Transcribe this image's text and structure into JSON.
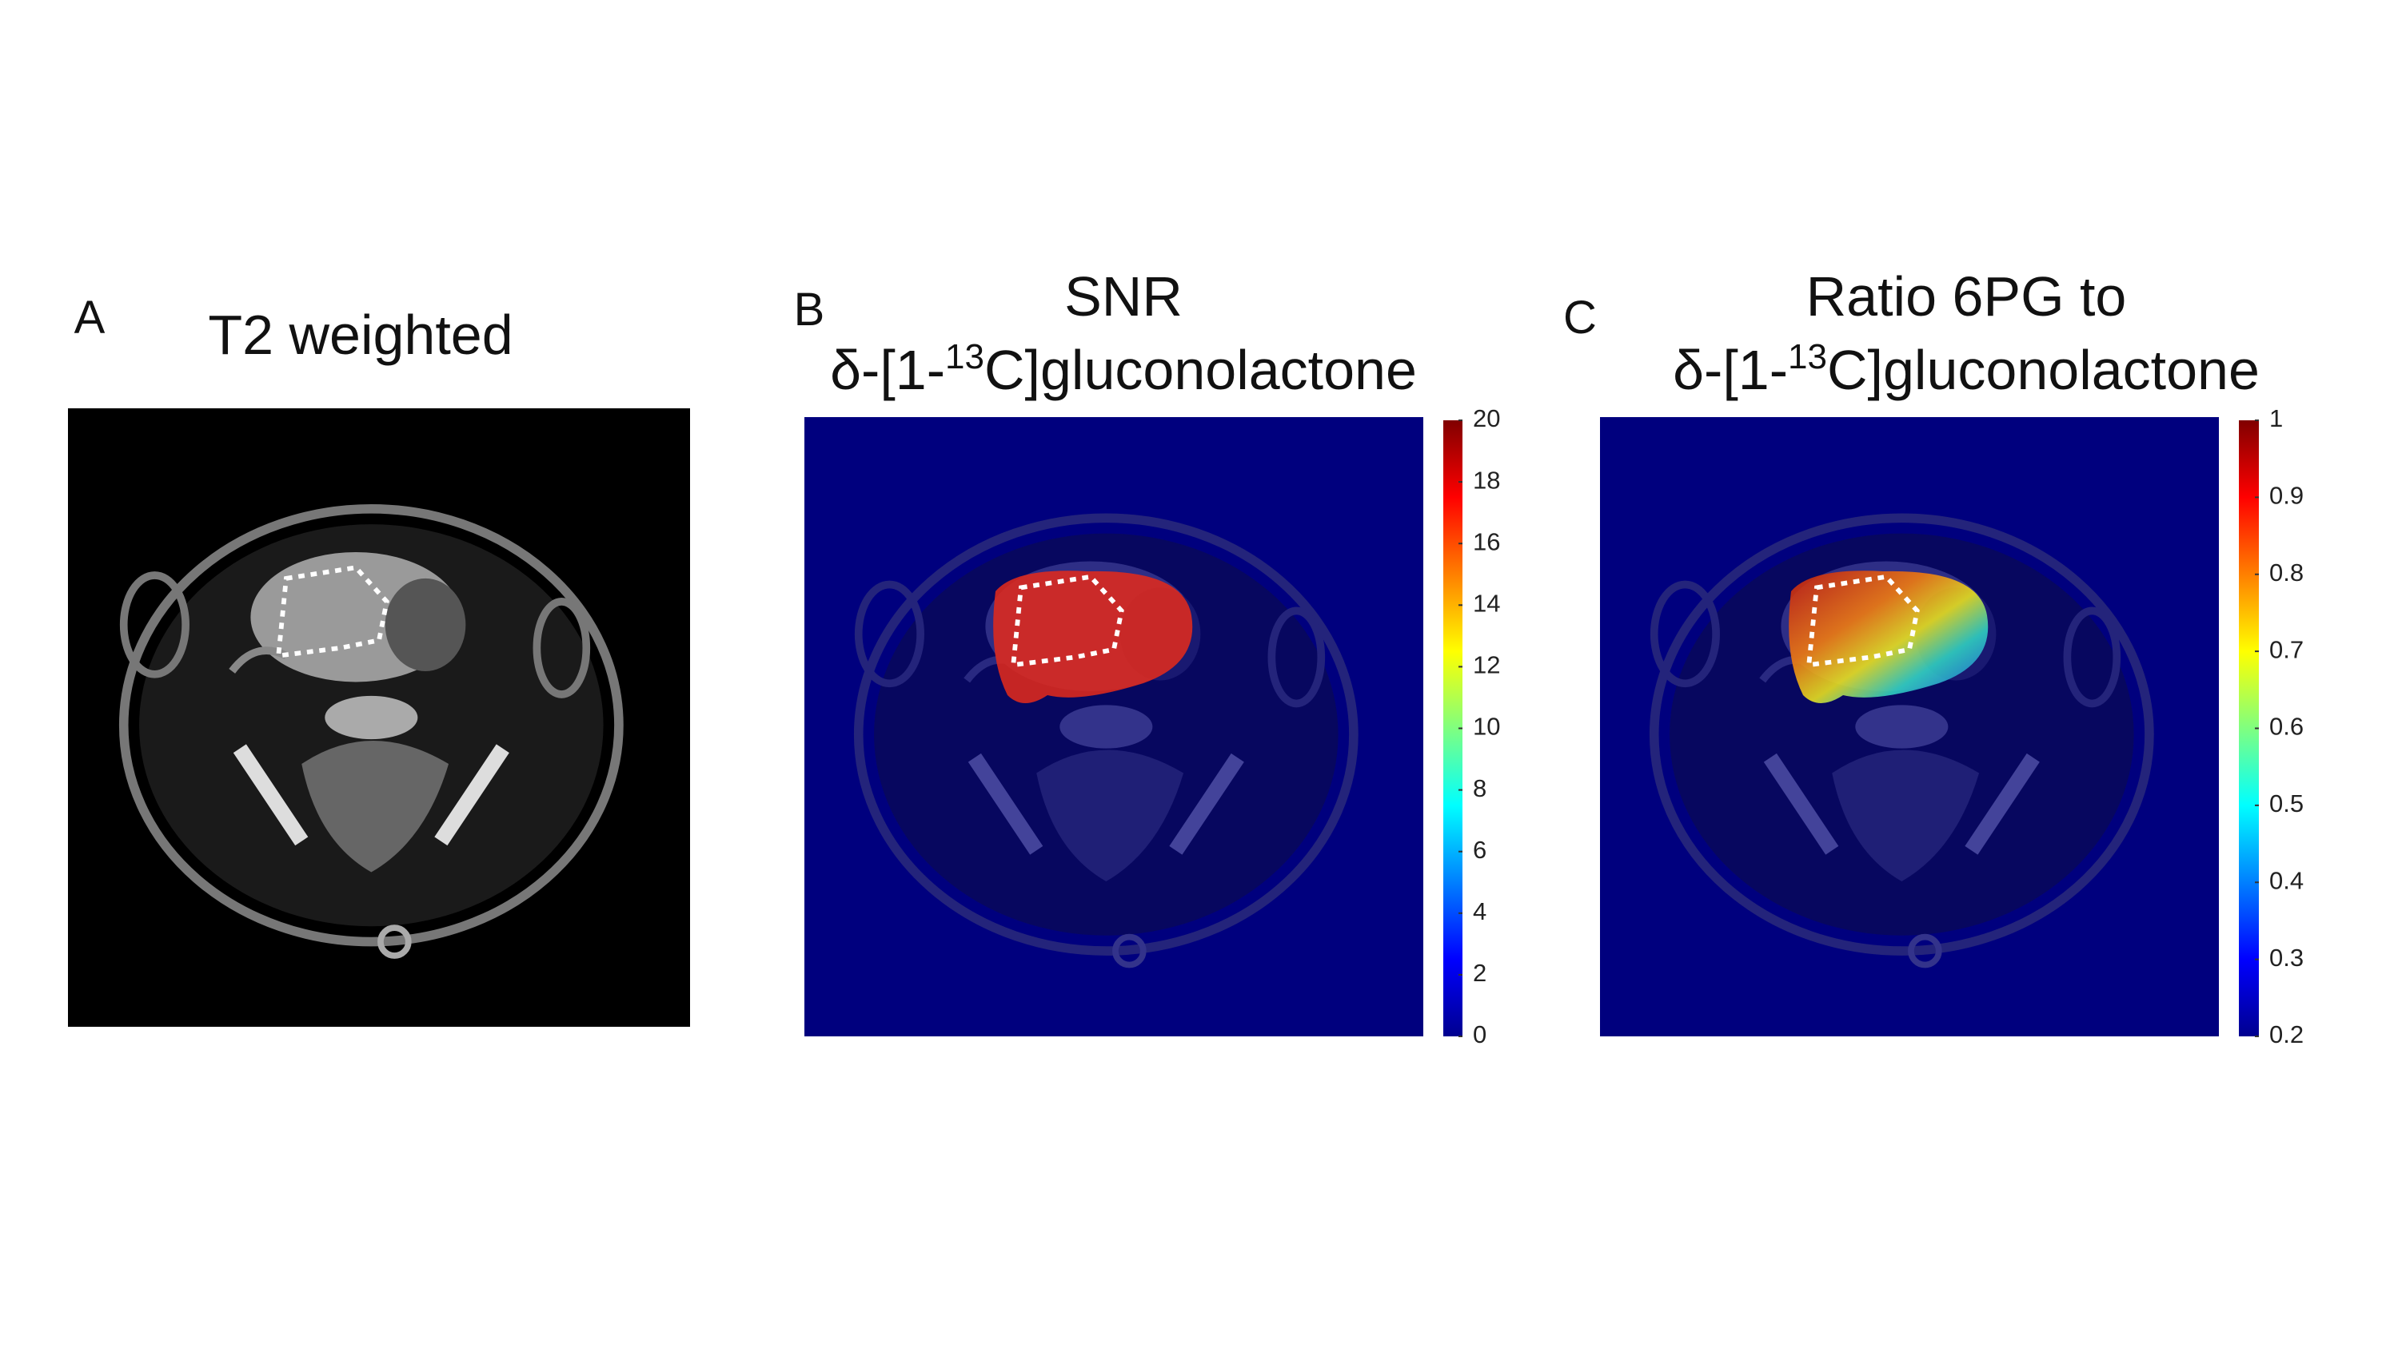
{
  "panels": [
    {
      "label": "A",
      "title": "T2 weighted"
    },
    {
      "label": "B",
      "title": "SNR",
      "subtitle_pre": "δ-[1-",
      "subtitle_sup": "13",
      "subtitle_post": "C]gluconolactone",
      "colorbar": {
        "lim": [
          0,
          20
        ],
        "ticks": [
          0,
          2,
          4,
          6,
          8,
          10,
          12,
          14,
          16,
          18,
          20
        ]
      }
    },
    {
      "label": "C",
      "title": "Ratio 6PG to",
      "subtitle_pre": "δ-[1-",
      "subtitle_sup": "13",
      "subtitle_post": "C]gluconolactone",
      "colorbar": {
        "lim": [
          0.2,
          1
        ],
        "ticks": [
          0.2,
          0.3,
          0.4,
          0.5,
          0.6,
          0.7,
          0.8,
          0.9,
          1
        ]
      }
    }
  ]
}
